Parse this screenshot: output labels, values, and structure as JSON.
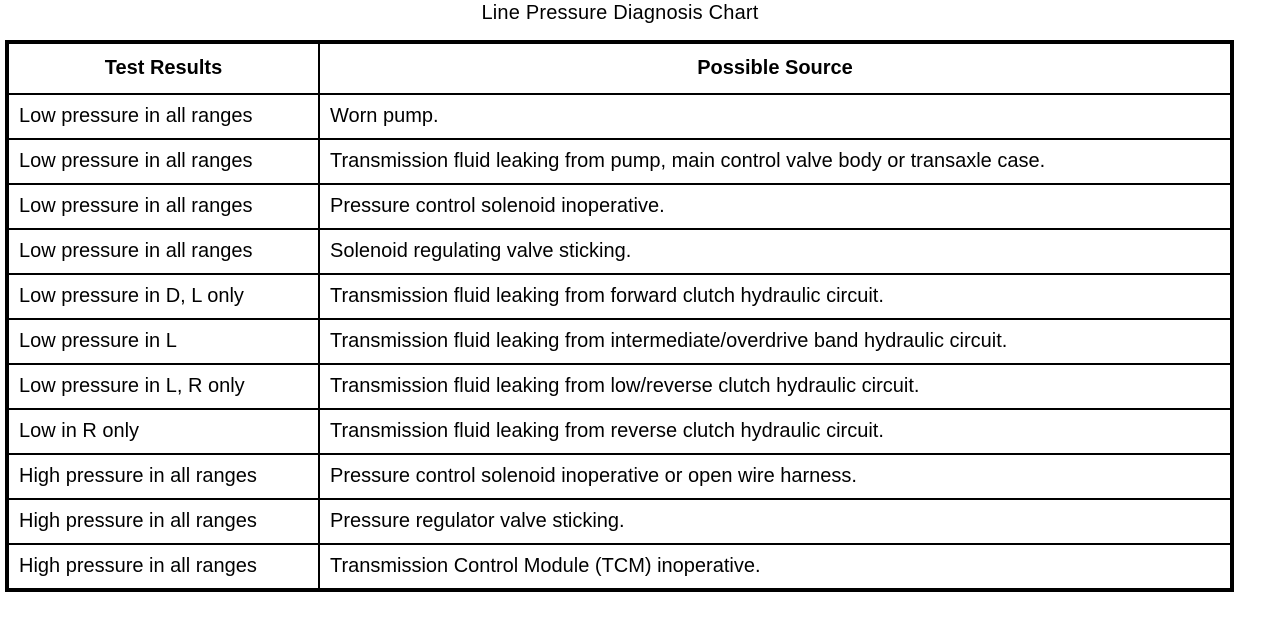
{
  "page_title": "Line Pressure Diagnosis Chart",
  "colors": {
    "background": "#ffffff",
    "border": "#000000",
    "text": "#000000"
  },
  "table": {
    "columns": [
      "Test Results",
      "Possible Source"
    ],
    "rows": [
      {
        "test_result": "Low pressure in all ranges",
        "possible_source": "Worn pump."
      },
      {
        "test_result": "Low pressure in all ranges",
        "possible_source": "Transmission fluid leaking from pump, main control valve body or transaxle case."
      },
      {
        "test_result": "Low pressure in all ranges",
        "possible_source": "Pressure control solenoid inoperative."
      },
      {
        "test_result": "Low pressure in all ranges",
        "possible_source": "Solenoid regulating valve sticking."
      },
      {
        "test_result": "Low pressure in D, L only",
        "possible_source": "Transmission fluid leaking from forward clutch hydraulic circuit."
      },
      {
        "test_result": "Low pressure in L",
        "possible_source": "Transmission fluid leaking from intermediate/overdrive band hydraulic circuit."
      },
      {
        "test_result": "Low pressure in L, R only",
        "possible_source": "Transmission fluid leaking from low/reverse clutch hydraulic circuit."
      },
      {
        "test_result": "Low in R only",
        "possible_source": "Transmission fluid leaking from reverse clutch hydraulic circuit."
      },
      {
        "test_result": "High pressure in all ranges",
        "possible_source": "Pressure control solenoid inoperative or open wire harness."
      },
      {
        "test_result": "High pressure in all ranges",
        "possible_source": "Pressure regulator valve sticking."
      },
      {
        "test_result": "High pressure in all ranges",
        "possible_source": "Transmission Control Module (TCM) inoperative."
      }
    ]
  }
}
